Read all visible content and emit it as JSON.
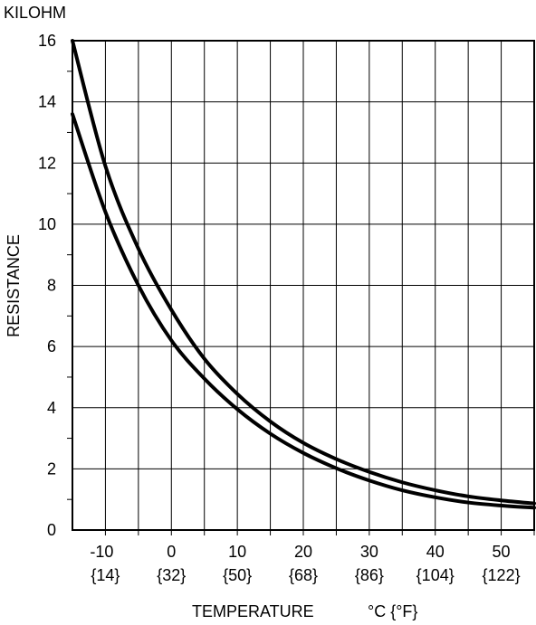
{
  "chart_data": {
    "type": "line",
    "unit_label": "KILOHM",
    "ylabel": "RESISTANCE",
    "xlabel": "TEMPERATURE",
    "xunit": "°C {°F}",
    "xlim": [
      -15,
      55
    ],
    "ylim": [
      0,
      16
    ],
    "grid": true,
    "x_ticks": [
      -10,
      0,
      10,
      20,
      30,
      40,
      50
    ],
    "x_tick_labels_c": [
      "-10",
      "0",
      "10",
      "20",
      "30",
      "40",
      "50"
    ],
    "x_tick_labels_f": [
      "{14}",
      "{32}",
      "{50}",
      "{68}",
      "{86}",
      "{104}",
      "{122}"
    ],
    "y_ticks": [
      0,
      2,
      4,
      6,
      8,
      10,
      12,
      14,
      16
    ],
    "y_tick_labels": [
      "0",
      "2",
      "4",
      "6",
      "8",
      "10",
      "12",
      "14",
      "16"
    ],
    "series": [
      {
        "x": [
          -15,
          -10,
          -5,
          0,
          5,
          10,
          15,
          20,
          25,
          30,
          35,
          40,
          45,
          50,
          55
        ],
        "y": [
          16.0,
          11.9,
          9.2,
          7.2,
          5.6,
          4.45,
          3.55,
          2.85,
          2.32,
          1.9,
          1.56,
          1.3,
          1.1,
          0.97,
          0.87
        ]
      },
      {
        "x": [
          -15,
          -10,
          -5,
          0,
          5,
          10,
          15,
          20,
          25,
          30,
          35,
          40,
          45,
          50,
          55
        ],
        "y": [
          13.6,
          10.4,
          8.0,
          6.2,
          4.95,
          3.95,
          3.15,
          2.52,
          2.02,
          1.62,
          1.3,
          1.07,
          0.9,
          0.8,
          0.73
        ]
      }
    ]
  }
}
